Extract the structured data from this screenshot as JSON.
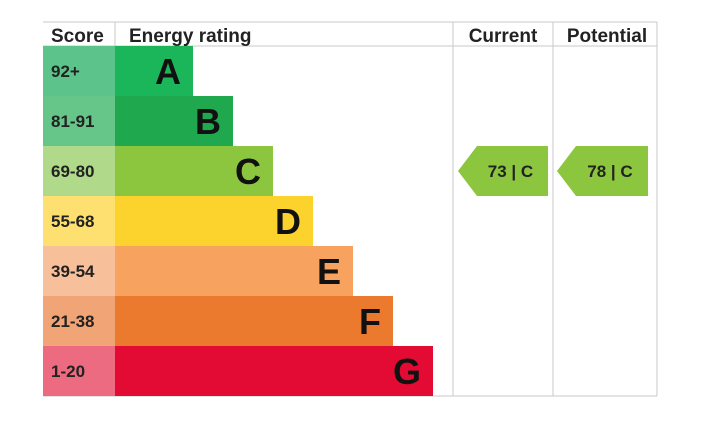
{
  "chart_data": {
    "type": "bar",
    "headers": {
      "score": "Score",
      "rating": "Energy rating",
      "current": "Current",
      "potential": "Potential"
    },
    "bands": [
      {
        "letter": "A",
        "score": "92+",
        "color": "#1bb55a",
        "score_color": "#5cc48a"
      },
      {
        "letter": "B",
        "score": "81-91",
        "color": "#20a84f",
        "score_color": "#66c588"
      },
      {
        "letter": "C",
        "score": "69-80",
        "color": "#8cc63f",
        "score_color": "#b0d98a"
      },
      {
        "letter": "D",
        "score": "55-68",
        "color": "#fcd22c",
        "score_color": "#fde070"
      },
      {
        "letter": "E",
        "score": "39-54",
        "color": "#f7a25f",
        "score_color": "#f8c09a"
      },
      {
        "letter": "F",
        "score": "21-38",
        "color": "#eb7a2f",
        "score_color": "#f1a576"
      },
      {
        "letter": "G",
        "score": "1-20",
        "color": "#e30b34",
        "score_color": "#ec6b80"
      }
    ],
    "current": {
      "value": 73,
      "band": "C",
      "label": "73 | C",
      "color": "#8cc63f"
    },
    "potential": {
      "value": 78,
      "band": "C",
      "label": "78 | C",
      "color": "#8cc63f"
    }
  }
}
